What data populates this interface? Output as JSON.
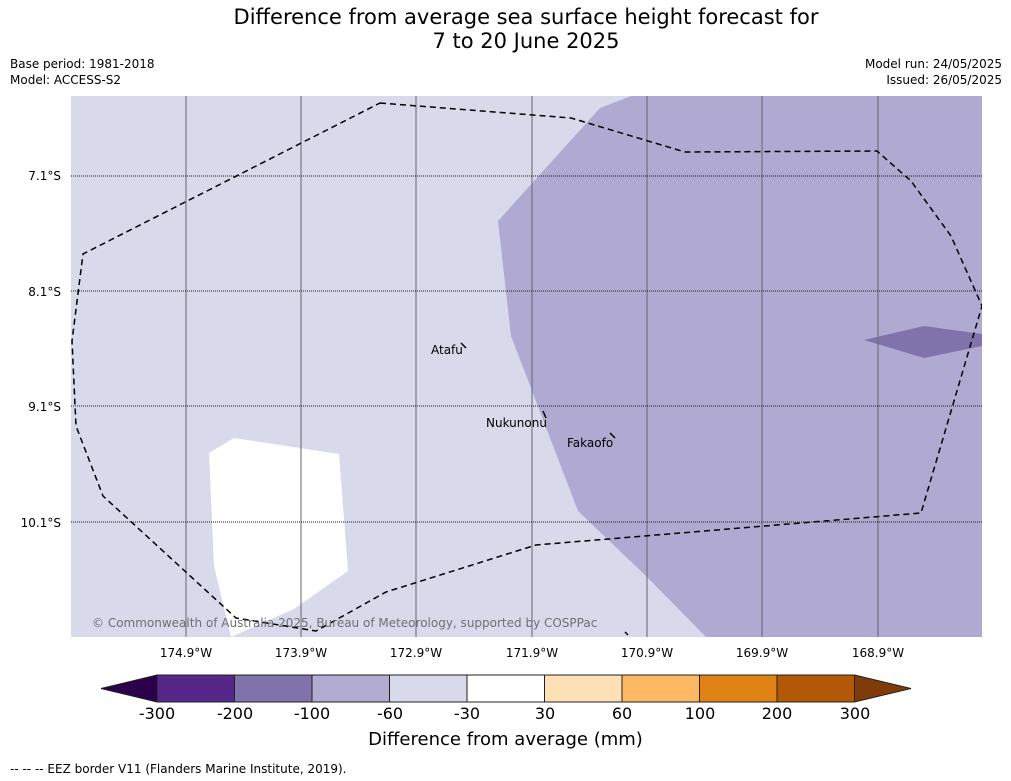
{
  "title_line1": "Difference from average sea surface height forecast for",
  "title_line2": "7 to 20 June 2025",
  "base_period": "Base period: 1981-2018",
  "model": "Model: ACCESS-S2",
  "model_run": "Model run: 24/05/2025",
  "issued": "Issued: 26/05/2025",
  "latitudes": [
    "7.1°S",
    "8.1°S",
    "9.1°S",
    "10.1°S"
  ],
  "longitudes": [
    "174.9°W",
    "173.9°W",
    "172.9°W",
    "171.9°W",
    "170.9°W",
    "169.9°W",
    "168.9°W"
  ],
  "places": {
    "atafu": "Atafu",
    "nukunonu": "Nukunonu",
    "fakaofo": "Fakaofo"
  },
  "copyright": "© Commonwealth of Australia 2025, Bureau of Meteorology, supported by COSPPac",
  "colorbar": {
    "ticks": [
      "-300",
      "-200",
      "-100",
      "-60",
      "-30",
      "30",
      "60",
      "100",
      "200",
      "300"
    ],
    "label": "Difference from average (mm)",
    "colors": [
      "#2d004b",
      "#542788",
      "#8073ac",
      "#b2abd2",
      "#d8daeb",
      "#ffffff",
      "#fee0b6",
      "#fdb863",
      "#e08214",
      "#b35806",
      "#7f3b08"
    ]
  },
  "footnote": "--  --  -- EEZ border V11 (Flanders Marine Institute, 2019).",
  "map_colors": {
    "light": "#d8d9ea",
    "mid": "#b0aad2",
    "dark": "#8073ac",
    "white": "#ffffff"
  }
}
